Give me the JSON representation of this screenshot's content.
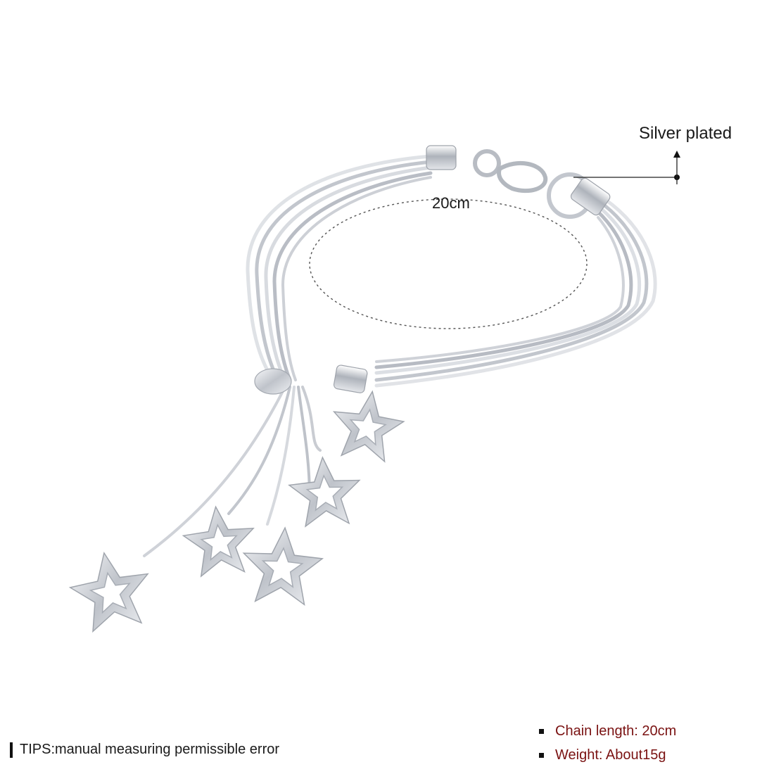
{
  "annotations": {
    "material": "Silver plated",
    "size": "20cm"
  },
  "tips": {
    "text": "TIPS:manual measuring permissible error"
  },
  "specs": [
    {
      "label": "Chain length: 20cm"
    },
    {
      "label": "Weight: About15g"
    }
  ],
  "colors": {
    "spec_text": "#7a1212",
    "silver": "#c9ccd2"
  },
  "icons": [
    "star-pendant-icon",
    "arrow-up-icon"
  ]
}
